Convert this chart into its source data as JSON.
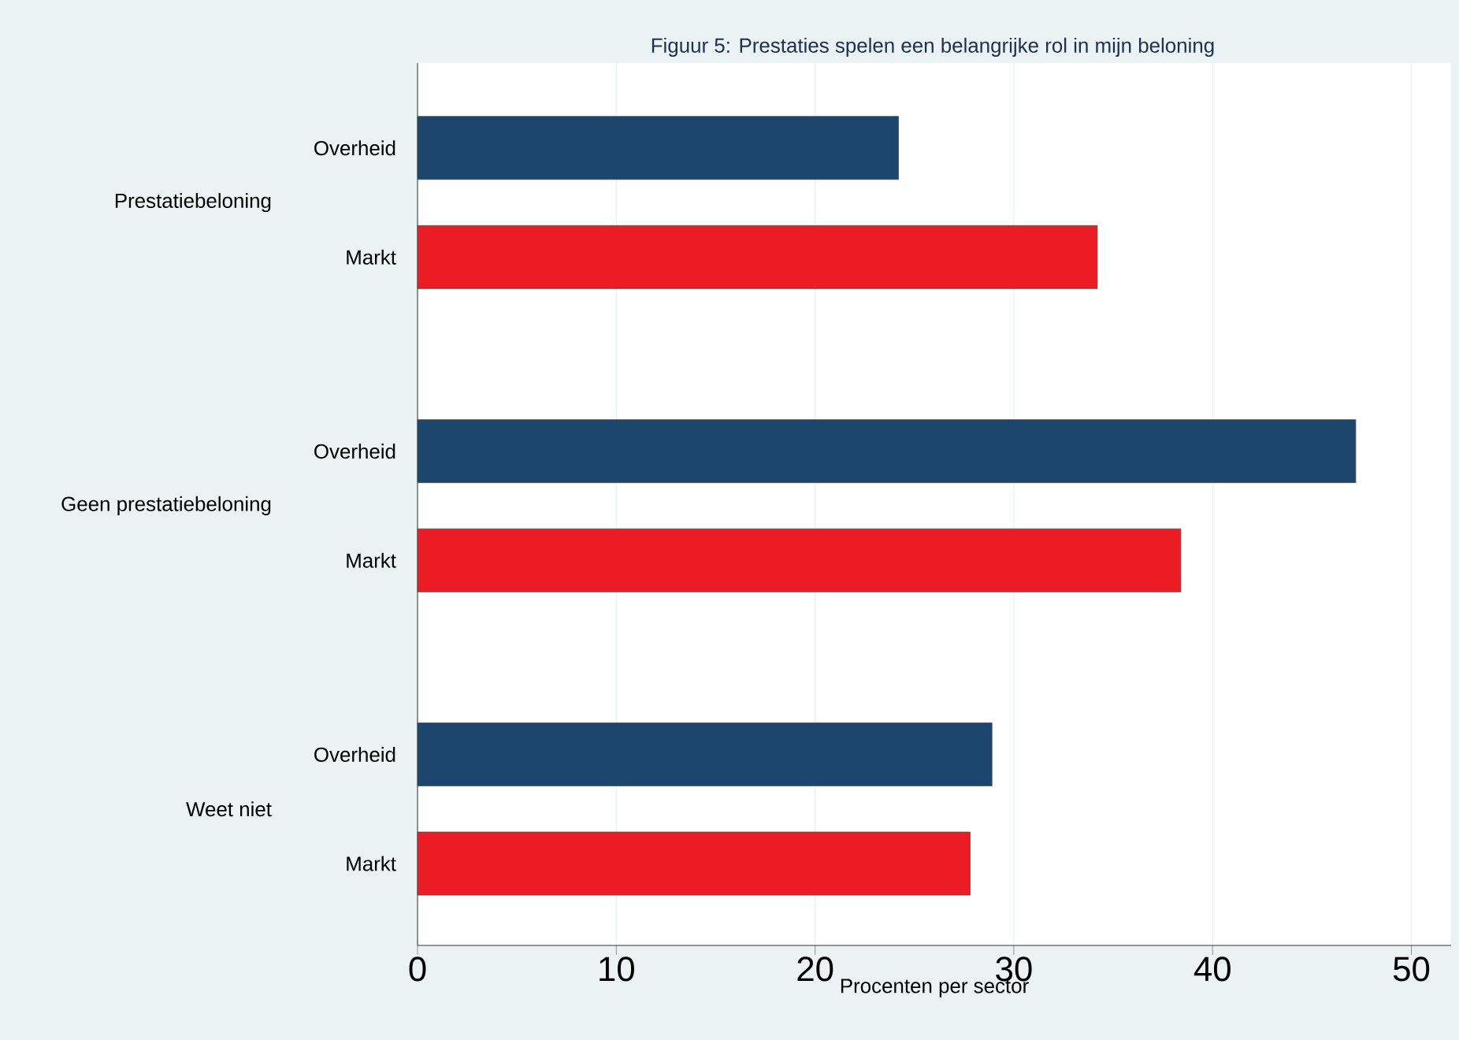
{
  "chart_data": {
    "type": "bar",
    "orientation": "horizontal",
    "title": "Figuur 5: Prestaties spelen een belangrijke rol in mijn beloning",
    "xlabel": "Procenten per sector",
    "categories": [
      "Prestatiebeloning",
      "Geen prestatiebeloning",
      "Weet niet"
    ],
    "series": [
      {
        "name": "Overheid",
        "color": "#1c466e",
        "values": [
          24.2,
          47.2,
          28.9
        ]
      },
      {
        "name": "Markt",
        "color": "#ec1c24",
        "values": [
          34.2,
          38.4,
          27.8
        ]
      }
    ],
    "xlim": [
      0,
      52
    ],
    "xticks": [
      0,
      10,
      20,
      30,
      40,
      50
    ],
    "grid": "x"
  }
}
